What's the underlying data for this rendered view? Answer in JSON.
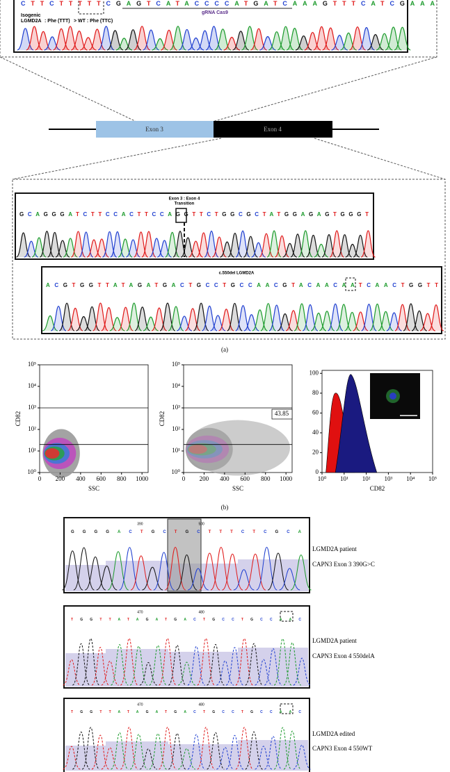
{
  "panel_a": {
    "top": {
      "sequence": "CTTCTTTTTCGAGTCATACCCCATGATCAAAGTTTCATCGAAA",
      "isogenic": "Isogenic",
      "lgmd": "LGMD2A",
      "mutant": ": Phe (TTT)",
      "wild_type": "> WT : Phe (TTC)",
      "grna": "gRNA Cas9"
    },
    "gene": {
      "exon3": "Exon 3",
      "exon4": "Exon 4"
    },
    "transition": {
      "title": "Exon 3 : Exon 4",
      "subtitle": "Transition",
      "sequence": "GCAGGGATCTTCCACTTCCAGGTTCTGGCGCTATGGAGAGTGGGT"
    },
    "deletion": {
      "title": "c.550del LGMD2A",
      "sequence": "ACGTGGTTATAGATGACTGCCTGCCAACGTACAACAATCAACTGGTT"
    },
    "label": "(a)"
  },
  "panel_b": {
    "plots": [
      {
        "xlabel": "SSC",
        "ylabel": "CD82",
        "xlim": [
          0,
          1060
        ],
        "xticks": [
          0,
          200,
          400,
          600,
          800,
          1000
        ],
        "ylim": [
          1,
          100000
        ],
        "yticks": [
          {
            "value": 1,
            "label": "10⁰"
          },
          {
            "value": 10,
            "label": "10¹"
          },
          {
            "value": 100,
            "label": "10²"
          },
          {
            "value": 1000,
            "label": "10³"
          },
          {
            "value": 10000,
            "label": "10⁴"
          },
          {
            "value": 100000,
            "label": "10⁵"
          }
        ],
        "gates": [
          1000,
          20
        ]
      },
      {
        "xlabel": "SSC",
        "ylabel": "CD82",
        "xlim": [
          0,
          1060
        ],
        "xticks": [
          0,
          200,
          400,
          600,
          800,
          1000
        ],
        "ylim": [
          1,
          100000
        ],
        "yticks": [
          {
            "value": 1,
            "label": "10⁰"
          },
          {
            "value": 10,
            "label": "10¹"
          },
          {
            "value": 100,
            "label": "10²"
          },
          {
            "value": 1000,
            "label": "10³"
          },
          {
            "value": 10000,
            "label": "10⁴"
          },
          {
            "value": 100000,
            "label": "10⁵"
          }
        ],
        "gates": [
          1000,
          20
        ],
        "gate_value": "43.85"
      },
      {
        "xlabel": "CD82",
        "xlim": [
          1,
          100000
        ],
        "xticks": [
          {
            "value": 1,
            "label": "10⁰"
          },
          {
            "value": 10,
            "label": "10¹"
          },
          {
            "value": 100,
            "label": "10²"
          },
          {
            "value": 1000,
            "label": "10³"
          },
          {
            "value": 10000,
            "label": "10⁴"
          },
          {
            "value": 100000,
            "label": "10⁵"
          }
        ],
        "ylim": [
          0,
          103
        ],
        "yticks": [
          0,
          20,
          40,
          60,
          80,
          100
        ]
      }
    ],
    "label": "(b)"
  },
  "panel_c": {
    "traces": [
      {
        "sequence": "GGGGACTGCTGCTTTCTCGCA",
        "positions": [
          390,
          500
        ],
        "line1": "LGMD2A patient",
        "line2": "CAPN3 Exon 3 390G>C"
      },
      {
        "sequence": "TGGTTATAGATGACTGCCTGCCAAC",
        "positions": [
          470,
          480
        ],
        "line1": "LGMD2A patient",
        "line2": "CAPN3 Exon 4 550delA"
      },
      {
        "sequence": "TGGTTATAGATGACTGCCTGCCAAC",
        "positions": [
          470,
          480
        ],
        "line1": "LGMD2A edited",
        "line2": "CAPN3 Exon 4 550WT"
      }
    ]
  }
}
